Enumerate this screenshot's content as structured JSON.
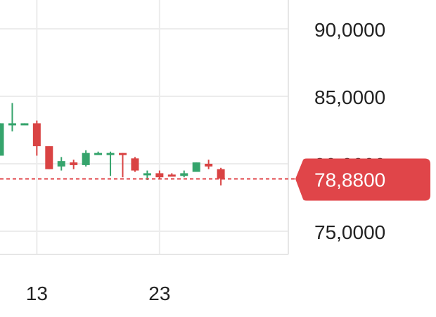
{
  "chart_data": {
    "type": "candlestick",
    "y_axis": {
      "ticks": [
        "90,0000",
        "85,0000",
        "80,0000",
        "75,0000"
      ],
      "tick_values": [
        90,
        85,
        80,
        75
      ],
      "position": "right"
    },
    "x_axis": {
      "ticks": [
        {
          "label": "13",
          "index": 3
        },
        {
          "label": "23",
          "index": 13
        }
      ]
    },
    "current_price": {
      "label": "78,8800",
      "value": 78.88,
      "color": "#e04549"
    },
    "colors": {
      "up": "#35a46c",
      "down": "#d94343",
      "grid": "#ececec"
    },
    "grid": true,
    "candles": [
      {
        "o": 80.6,
        "h": 83.0,
        "l": 80.6,
        "c": 83.0
      },
      {
        "o": 83.0,
        "h": 84.5,
        "l": 82.4,
        "c": 83.0
      },
      {
        "o": 83.0,
        "h": 83.0,
        "l": 82.9,
        "c": 83.0
      },
      {
        "o": 83.0,
        "h": 83.2,
        "l": 80.6,
        "c": 81.3
      },
      {
        "o": 81.3,
        "h": 81.3,
        "l": 79.6,
        "c": 79.6
      },
      {
        "o": 79.8,
        "h": 80.5,
        "l": 79.5,
        "c": 80.2
      },
      {
        "o": 80.1,
        "h": 80.3,
        "l": 79.6,
        "c": 79.9
      },
      {
        "o": 79.9,
        "h": 81.0,
        "l": 79.8,
        "c": 80.8
      },
      {
        "o": 80.8,
        "h": 80.9,
        "l": 80.7,
        "c": 80.8
      },
      {
        "o": 80.8,
        "h": 80.9,
        "l": 79.1,
        "c": 80.8
      },
      {
        "o": 80.8,
        "h": 80.8,
        "l": 79.0,
        "c": 80.7
      },
      {
        "o": 80.4,
        "h": 80.5,
        "l": 79.4,
        "c": 79.5
      },
      {
        "o": 79.3,
        "h": 79.5,
        "l": 78.8,
        "c": 79.3
      },
      {
        "o": 79.3,
        "h": 79.5,
        "l": 78.9,
        "c": 79.0
      },
      {
        "o": 79.2,
        "h": 79.3,
        "l": 79.1,
        "c": 79.1
      },
      {
        "o": 79.1,
        "h": 79.5,
        "l": 79.0,
        "c": 79.3
      },
      {
        "o": 79.4,
        "h": 80.1,
        "l": 79.4,
        "c": 80.1
      },
      {
        "o": 80.0,
        "h": 80.3,
        "l": 79.6,
        "c": 79.8
      },
      {
        "o": 79.6,
        "h": 79.7,
        "l": 78.4,
        "c": 78.9
      }
    ]
  }
}
